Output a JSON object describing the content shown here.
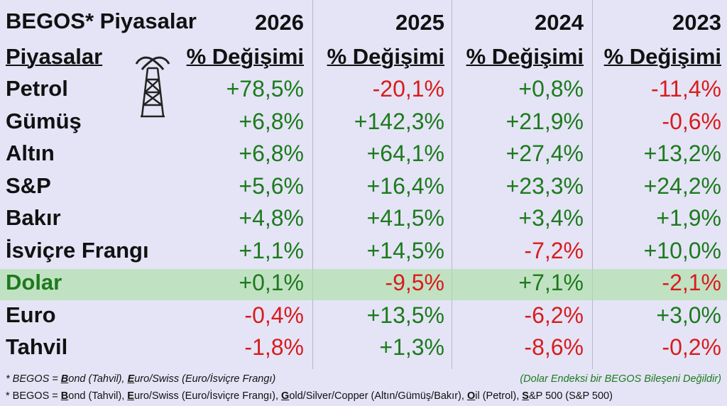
{
  "title": "BEGOS* Piyasalar",
  "header": {
    "label": "Piyasalar",
    "years": [
      "2026",
      "2025",
      "2024",
      "2023"
    ],
    "subheaders": [
      "% Değişimi",
      "% Değişimi",
      "% Değişimi",
      "% Değişimi"
    ]
  },
  "table": {
    "highlight_row": 6,
    "rows": [
      [
        "Petrol",
        "+78,5%",
        "-20,1%",
        "+0,8%",
        "-11,4%"
      ],
      [
        "Gümüş",
        "+6,8%",
        "+142,3%",
        "+21,9%",
        "-0,6%"
      ],
      [
        "Altın",
        "+6,8%",
        "+64,1%",
        "+27,4%",
        "+13,2%"
      ],
      [
        "S&P",
        "+5,6%",
        "+16,4%",
        "+23,3%",
        "+24,2%"
      ],
      [
        "Bakır",
        "+4,8%",
        "+41,5%",
        "+3,4%",
        "+1,9%"
      ],
      [
        "İsviçre Frangı",
        "+1,1%",
        "+14,5%",
        "-7,2%",
        "+10,0%"
      ],
      [
        "Dolar",
        "+0,1%",
        "-9,5%",
        "+7,1%",
        "-2,1%"
      ],
      [
        "Euro",
        "-0,4%",
        "+13,5%",
        "-6,2%",
        "+3,0%"
      ],
      [
        "Tahvil",
        "-1,8%",
        "+1,3%",
        "-8,6%",
        "-0,2%"
      ]
    ]
  },
  "footnotes": [
    {
      "segments": [
        "* BEGOS = ",
        "B",
        "ond (Tahvil), ",
        "E",
        "uro/Swiss (Euro/İsviçre Frangı)"
      ],
      "note": "(Dolar Endeksi bir BEGOS Bileşeni Değildir)"
    },
    {
      "segments": [
        "* BEGOS = ",
        "B",
        "ond (Tahvil), ",
        "E",
        "uro/Swiss (Euro/İsviçre Frangı), ",
        "G",
        "old/Silver/Copper (Altın/Gümüş/Bakır), ",
        "O",
        "il (Petrol), ",
        "S",
        "&P 500 (S&P 500)"
      ]
    }
  ]
}
